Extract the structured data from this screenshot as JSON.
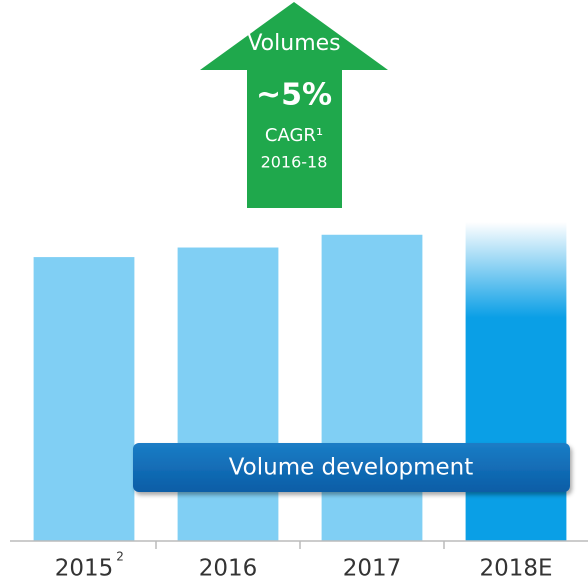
{
  "chart_data": {
    "type": "bar",
    "categories": [
      "2015",
      "2016",
      "2017",
      "2018E"
    ],
    "category_footnotes": [
      "2",
      null,
      null,
      null
    ],
    "values": [
      89,
      92,
      96,
      100
    ],
    "colors": [
      "#80cff4",
      "#80cff4",
      "#80cff4",
      "#0a9fe6"
    ],
    "faded": [
      false,
      false,
      false,
      true
    ],
    "ylim": [
      0,
      100
    ],
    "arrow": {
      "label": "Volumes",
      "value": "~5%",
      "metric": "CAGR¹",
      "period": "2016-18",
      "color": "#1fa84c"
    },
    "banner": "Volume development"
  }
}
